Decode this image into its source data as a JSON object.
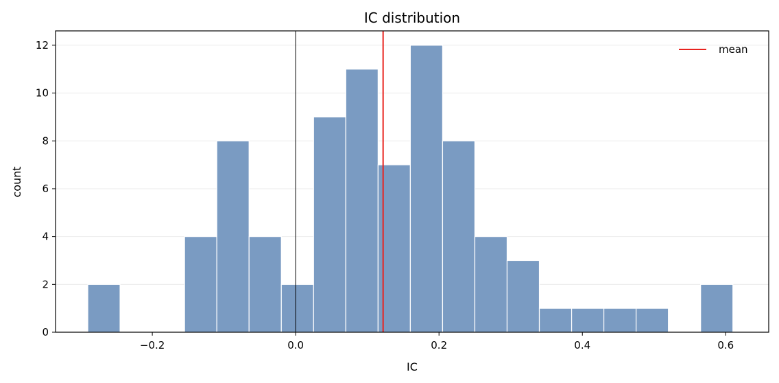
{
  "chart_data": {
    "type": "bar",
    "title": "IC distribution",
    "xlabel": "IC",
    "ylabel": "count",
    "xlim": [
      -0.335,
      0.66
    ],
    "ylim": [
      0,
      12.6
    ],
    "x_ticks": [
      -0.2,
      0.0,
      0.2,
      0.4,
      0.6
    ],
    "x_tick_labels": [
      "−0.2",
      "0.0",
      "0.2",
      "0.4",
      "0.6"
    ],
    "y_ticks": [
      0,
      2,
      4,
      6,
      8,
      10,
      12
    ],
    "y_tick_labels": [
      "0",
      "2",
      "4",
      "6",
      "8",
      "10",
      "12"
    ],
    "grid": "horizontal",
    "bins": [
      {
        "x0": -0.29,
        "x1": -0.245,
        "count": 2
      },
      {
        "x0": -0.245,
        "x1": -0.2,
        "count": 0
      },
      {
        "x0": -0.2,
        "x1": -0.155,
        "count": 0
      },
      {
        "x0": -0.155,
        "x1": -0.11,
        "count": 4
      },
      {
        "x0": -0.11,
        "x1": -0.065,
        "count": 8
      },
      {
        "x0": -0.065,
        "x1": -0.02,
        "count": 4
      },
      {
        "x0": -0.02,
        "x1": 0.025,
        "count": 2
      },
      {
        "x0": 0.025,
        "x1": 0.07,
        "count": 9
      },
      {
        "x0": 0.07,
        "x1": 0.115,
        "count": 11
      },
      {
        "x0": 0.115,
        "x1": 0.16,
        "count": 7
      },
      {
        "x0": 0.16,
        "x1": 0.205,
        "count": 12
      },
      {
        "x0": 0.205,
        "x1": 0.25,
        "count": 8
      },
      {
        "x0": 0.25,
        "x1": 0.295,
        "count": 4
      },
      {
        "x0": 0.295,
        "x1": 0.34,
        "count": 3
      },
      {
        "x0": 0.34,
        "x1": 0.385,
        "count": 1
      },
      {
        "x0": 0.385,
        "x1": 0.43,
        "count": 1
      },
      {
        "x0": 0.43,
        "x1": 0.475,
        "count": 1
      },
      {
        "x0": 0.475,
        "x1": 0.52,
        "count": 1
      },
      {
        "x0": 0.52,
        "x1": 0.565,
        "count": 0
      },
      {
        "x0": 0.565,
        "x1": 0.61,
        "count": 2
      }
    ],
    "mean": 0.122,
    "zero_line": 0.0,
    "legend": {
      "label": "mean",
      "placement": "top-right"
    },
    "colors": {
      "bar": "#7a9bc2",
      "bar_edge": "#ffffff",
      "mean_line": "#e8231f",
      "zero_line": "#000000",
      "grid": "#ebebeb"
    }
  }
}
